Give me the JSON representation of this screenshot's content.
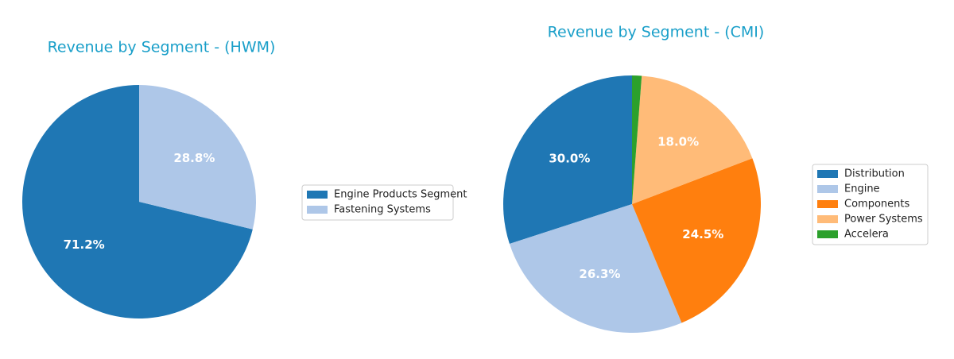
{
  "chart_data": [
    {
      "type": "pie",
      "title": "Revenue by Segment - (HWM)",
      "categories": [
        "Engine Products Segment",
        "Fastening Systems"
      ],
      "values": [
        71.2,
        28.8
      ],
      "value_labels": [
        "71.2%",
        "28.8%"
      ],
      "colors": [
        "#1f77b4",
        "#aec7e8"
      ],
      "legend": "right"
    },
    {
      "type": "pie",
      "title": "Revenue by Segment - (CMI)",
      "categories": [
        "Distribution",
        "Engine",
        "Components",
        "Power Systems",
        "Accelera"
      ],
      "values": [
        30.0,
        26.3,
        24.5,
        18.0,
        1.2
      ],
      "value_labels": [
        "30.0%",
        "26.3%",
        "24.5%",
        "18.0%",
        null
      ],
      "colors": [
        "#1f77b4",
        "#aec7e8",
        "#ff7f0e",
        "#ffbb78",
        "#2ca02c"
      ],
      "legend": "right"
    }
  ]
}
